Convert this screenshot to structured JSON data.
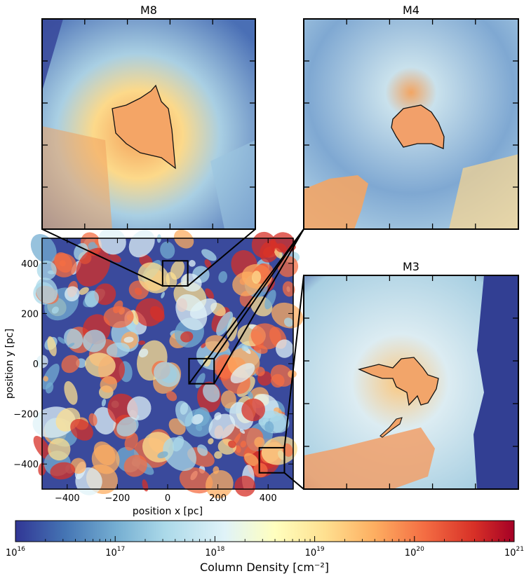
{
  "chart_data": {
    "type": "heatmap",
    "main_map": {
      "xlabel": "position x [pc]",
      "ylabel": "position y [pc]",
      "xlim": [
        -500,
        500
      ],
      "ylim": [
        -500,
        500
      ],
      "xticks": [
        -400,
        -200,
        0,
        200,
        400
      ],
      "yticks": [
        -400,
        -200,
        0,
        200,
        400
      ],
      "xtick_labels": [
        "−400",
        "−200",
        "0",
        "200",
        "400"
      ],
      "ytick_labels": [
        "−400",
        "−200",
        "0",
        "200",
        "400"
      ]
    },
    "zoom_regions": [
      {
        "title": "M8",
        "x_range": [
          -20,
          80
        ],
        "y_range": [
          310,
          410
        ]
      },
      {
        "title": "M4",
        "x_range": [
          85,
          185
        ],
        "y_range": [
          -80,
          20
        ]
      },
      {
        "title": "M3",
        "x_range": [
          365,
          465
        ],
        "y_range": [
          -435,
          -335
        ]
      }
    ],
    "colorbar": {
      "label": "Column Density [cm⁻²]",
      "scale": "log",
      "range": [
        1e+16,
        1e+21
      ],
      "tick_values": [
        16,
        17,
        18,
        19,
        20,
        21
      ],
      "colormap_colors": [
        "#313695",
        "#4575b4",
        "#74add1",
        "#abd9e9",
        "#e0f3f8",
        "#ffffbf",
        "#fee090",
        "#fdae61",
        "#f46d43",
        "#d73027",
        "#a50026"
      ]
    }
  }
}
